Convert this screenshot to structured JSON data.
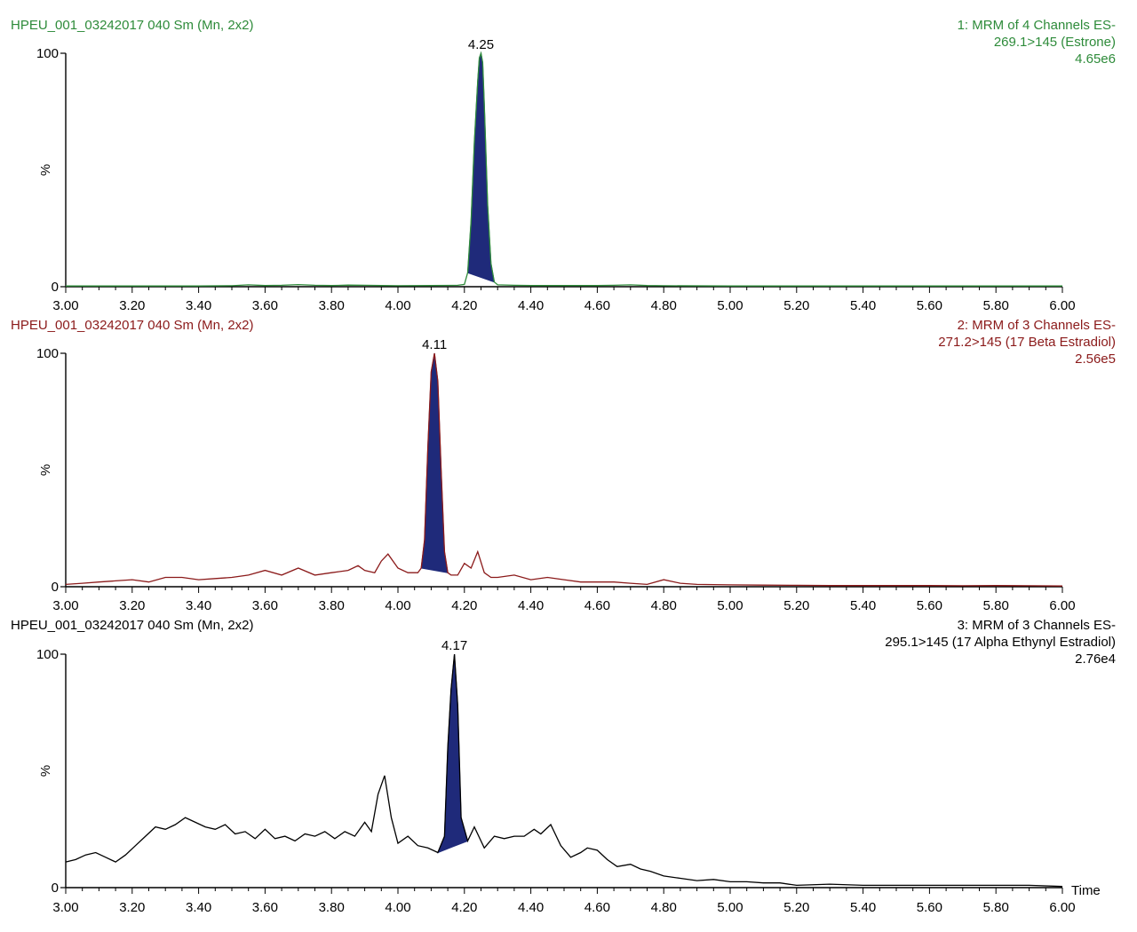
{
  "x_axis_unit": "Time",
  "chart_data": [
    {
      "type": "line",
      "header_left": "HPEU_001_03242017 040 Sm (Mn, 2x2)",
      "header_right": [
        "1: MRM of 4 Channels ES-",
        "269.1>145 (Estrone)",
        "4.65e6"
      ],
      "color": "#2e8b3a",
      "fill_color": "#1f2a7a",
      "xlim": [
        3.0,
        6.0
      ],
      "ylim": [
        0,
        100
      ],
      "x_ticks": [
        "3.00",
        "3.20",
        "3.40",
        "3.60",
        "3.80",
        "4.00",
        "4.20",
        "4.40",
        "4.60",
        "4.80",
        "5.00",
        "5.20",
        "5.40",
        "5.60",
        "5.80",
        "6.00"
      ],
      "y_ticks": [
        "0",
        "%",
        "100"
      ],
      "peak": {
        "label": "4.25",
        "x": 4.25,
        "y": 100
      },
      "fill_range": [
        4.21,
        4.29
      ],
      "x": [
        3.0,
        3.2,
        3.4,
        3.5,
        3.55,
        3.6,
        3.65,
        3.7,
        3.75,
        3.8,
        3.85,
        3.9,
        3.95,
        4.0,
        4.1,
        4.18,
        4.2,
        4.21,
        4.22,
        4.23,
        4.24,
        4.245,
        4.25,
        4.255,
        4.26,
        4.27,
        4.28,
        4.29,
        4.3,
        4.35,
        4.4,
        4.5,
        4.6,
        4.65,
        4.7,
        4.75,
        4.8,
        5.0,
        5.2,
        5.4,
        5.6,
        5.8,
        6.0
      ],
      "values": [
        0.3,
        0.3,
        0.3,
        0.4,
        0.8,
        0.5,
        0.6,
        0.9,
        0.6,
        0.5,
        0.7,
        0.6,
        0.5,
        0.4,
        0.5,
        0.6,
        1,
        6,
        28,
        62,
        88,
        98,
        100,
        96,
        78,
        35,
        10,
        2,
        0.8,
        0.6,
        0.5,
        0.5,
        0.5,
        0.6,
        0.8,
        0.5,
        0.4,
        0.3,
        0.3,
        0.3,
        0.3,
        0.3,
        0.3
      ]
    },
    {
      "type": "line",
      "header_left": "HPEU_001_03242017 040 Sm (Mn, 2x2)",
      "header_right": [
        "2: MRM of 3 Channels ES-",
        "271.2>145 (17 Beta Estradiol)",
        "2.56e5"
      ],
      "color": "#8b1a1a",
      "fill_color": "#1f2a7a",
      "xlim": [
        3.0,
        6.0
      ],
      "ylim": [
        0,
        100
      ],
      "x_ticks": [
        "3.00",
        "3.20",
        "3.40",
        "3.60",
        "3.80",
        "4.00",
        "4.20",
        "4.40",
        "4.60",
        "4.80",
        "5.00",
        "5.20",
        "5.40",
        "5.60",
        "5.80",
        "6.00"
      ],
      "y_ticks": [
        "0",
        "%",
        "100"
      ],
      "peak": {
        "label": "4.11",
        "x": 4.11,
        "y": 100
      },
      "fill_range": [
        4.07,
        4.15
      ],
      "x": [
        3.0,
        3.05,
        3.1,
        3.15,
        3.2,
        3.25,
        3.3,
        3.35,
        3.4,
        3.45,
        3.5,
        3.55,
        3.6,
        3.65,
        3.7,
        3.75,
        3.8,
        3.85,
        3.88,
        3.9,
        3.93,
        3.95,
        3.97,
        4.0,
        4.03,
        4.06,
        4.07,
        4.08,
        4.09,
        4.1,
        4.11,
        4.12,
        4.13,
        4.14,
        4.15,
        4.16,
        4.18,
        4.2,
        4.22,
        4.24,
        4.26,
        4.28,
        4.3,
        4.35,
        4.4,
        4.45,
        4.5,
        4.55,
        4.6,
        4.65,
        4.7,
        4.75,
        4.8,
        4.85,
        4.9,
        5.0,
        5.1,
        5.2,
        5.3,
        5.4,
        5.5,
        5.6,
        5.7,
        5.8,
        5.9,
        6.0
      ],
      "values": [
        1,
        1.5,
        2,
        2.5,
        3,
        2,
        4,
        4,
        3,
        3.5,
        4,
        5,
        7,
        5,
        8,
        5,
        6,
        7,
        9,
        7,
        6,
        11,
        14,
        8,
        6,
        6,
        8,
        20,
        60,
        92,
        100,
        88,
        50,
        15,
        6,
        5,
        5,
        10,
        8,
        15,
        6,
        4,
        4,
        5,
        3,
        4,
        3,
        2,
        2,
        2,
        1.5,
        1,
        3,
        1.5,
        1,
        0.8,
        0.7,
        0.6,
        0.5,
        0.5,
        0.5,
        0.5,
        0.4,
        0.5,
        0.4,
        0.3
      ]
    },
    {
      "type": "line",
      "header_left": "HPEU_001_03242017 040 Sm (Mn, 2x2)",
      "header_right": [
        "3: MRM of 3 Channels ES-",
        "295.1>145 (17 Alpha Ethynyl Estradiol)",
        "2.76e4"
      ],
      "color": "#000000",
      "fill_color": "#1f2a7a",
      "xlim": [
        3.0,
        6.0
      ],
      "ylim": [
        0,
        100
      ],
      "x_ticks": [
        "3.00",
        "3.20",
        "3.40",
        "3.60",
        "3.80",
        "4.00",
        "4.20",
        "4.40",
        "4.60",
        "4.80",
        "5.00",
        "5.20",
        "5.40",
        "5.60",
        "5.80",
        "6.00"
      ],
      "y_ticks": [
        "0",
        "%",
        "100"
      ],
      "peak": {
        "label": "4.17",
        "x": 4.17,
        "y": 100
      },
      "fill_range": [
        4.12,
        4.21
      ],
      "x": [
        3.0,
        3.03,
        3.06,
        3.09,
        3.12,
        3.15,
        3.18,
        3.21,
        3.24,
        3.27,
        3.3,
        3.33,
        3.36,
        3.39,
        3.42,
        3.45,
        3.48,
        3.51,
        3.54,
        3.57,
        3.6,
        3.63,
        3.66,
        3.69,
        3.72,
        3.75,
        3.78,
        3.81,
        3.84,
        3.87,
        3.9,
        3.92,
        3.94,
        3.96,
        3.98,
        4.0,
        4.03,
        4.06,
        4.09,
        4.12,
        4.14,
        4.15,
        4.16,
        4.17,
        4.18,
        4.19,
        4.21,
        4.23,
        4.26,
        4.29,
        4.32,
        4.35,
        4.38,
        4.41,
        4.43,
        4.46,
        4.49,
        4.52,
        4.55,
        4.57,
        4.6,
        4.63,
        4.66,
        4.7,
        4.73,
        4.76,
        4.8,
        4.85,
        4.9,
        4.95,
        5.0,
        5.05,
        5.1,
        5.15,
        5.2,
        5.3,
        5.4,
        5.5,
        5.6,
        5.7,
        5.8,
        5.9,
        6.0
      ],
      "values": [
        11,
        12,
        14,
        15,
        13,
        11,
        14,
        18,
        22,
        26,
        25,
        27,
        30,
        28,
        26,
        25,
        27,
        23,
        24,
        21,
        25,
        21,
        22,
        20,
        23,
        22,
        24,
        21,
        24,
        22,
        28,
        24,
        40,
        48,
        30,
        19,
        22,
        18,
        17,
        15,
        22,
        60,
        85,
        100,
        78,
        30,
        20,
        26,
        17,
        22,
        21,
        22,
        22,
        25,
        23,
        27,
        18,
        13,
        15,
        17,
        16,
        12,
        9,
        10,
        8,
        7,
        5,
        4,
        3,
        3.5,
        2.5,
        2.5,
        2,
        2,
        1,
        1.5,
        1,
        1,
        1,
        1,
        1,
        1,
        0.5
      ]
    }
  ]
}
